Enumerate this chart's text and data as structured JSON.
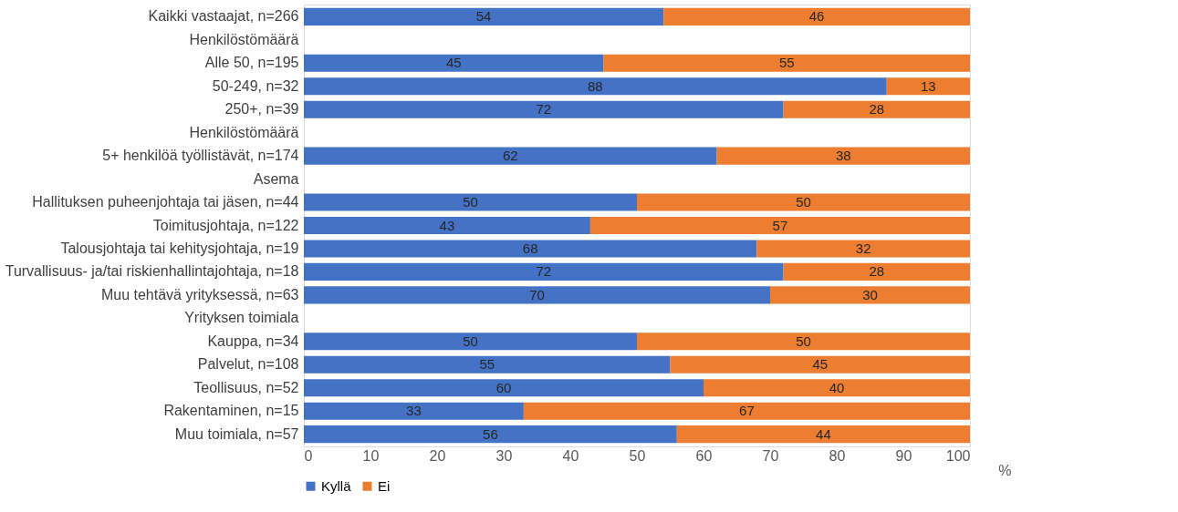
{
  "chart_data": {
    "type": "bar",
    "orientation": "horizontal",
    "stacked": true,
    "categories": [
      "Kaikki vastaajat, n=266",
      "Henkilöstömäärä",
      "Alle 50, n=195",
      "50-249, n=32",
      "250+, n=39",
      "Henkilöstömäärä",
      "5+ henkilöä työllistävät, n=174",
      "Asema",
      "Hallituksen puheenjohtaja tai jäsen, n=44",
      "Toimitusjohtaja, n=122",
      "Talousjohtaja tai kehitysjohtaja, n=19",
      "Turvallisuus- ja/tai riskienhallintajohtaja, n=18",
      "Muu tehtävä yrityksessä, n=63",
      "Yrityksen toimiala",
      "Kauppa, n=34",
      "Palvelut, n=108",
      "Teollisuus, n=52",
      "Rakentaminen, n=15",
      "Muu toimiala, n=57"
    ],
    "series": [
      {
        "name": "Kyllä",
        "color": "#4472c4",
        "values": [
          54,
          null,
          45,
          87.5,
          72,
          null,
          62,
          null,
          50,
          43,
          68,
          72,
          70,
          null,
          50,
          55,
          60,
          33,
          56
        ],
        "value_labels": [
          "54",
          null,
          "45",
          "88",
          "72",
          null,
          "62",
          null,
          "50",
          "43",
          "68",
          "72",
          "70",
          null,
          "50",
          "55",
          "60",
          "33",
          "56"
        ]
      },
      {
        "name": "Ei",
        "color": "#ed7d31",
        "values": [
          46,
          null,
          55,
          12.5,
          28,
          null,
          38,
          null,
          50,
          57,
          32,
          28,
          30,
          null,
          50,
          45,
          40,
          67,
          44
        ],
        "value_labels": [
          "46",
          null,
          "55",
          "13",
          "28",
          null,
          "38",
          null,
          "50",
          "57",
          "32",
          "28",
          "30",
          null,
          "50",
          "45",
          "40",
          "67",
          "44"
        ]
      }
    ],
    "xlim": [
      0,
      100
    ],
    "xticks": [
      0,
      10,
      20,
      30,
      40,
      50,
      60,
      70,
      80,
      90,
      100
    ],
    "xlabel": "%",
    "grid": false,
    "legend": "bottom"
  }
}
